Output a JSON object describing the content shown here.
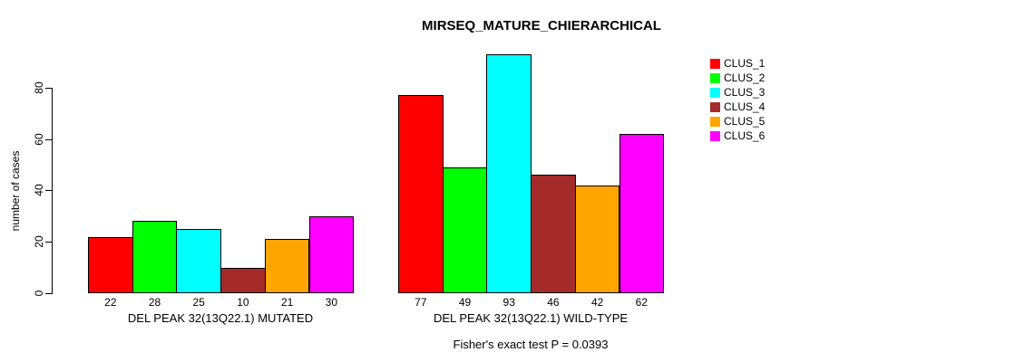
{
  "chart_data": {
    "type": "bar",
    "title": "MIRSEQ_MATURE_CHIERARCHICAL",
    "ylabel": "number of cases",
    "xlabel": "",
    "ylim": [
      0,
      80
    ],
    "yticks": [
      0,
      20,
      40,
      60,
      80
    ],
    "grid": false,
    "legend_position": "right",
    "legend": [
      {
        "label": "CLUS_1",
        "color": "#FF0000"
      },
      {
        "label": "CLUS_2",
        "color": "#00FF00"
      },
      {
        "label": "CLUS_3",
        "color": "#00FFFF"
      },
      {
        "label": "CLUS_4",
        "color": "#A52A2A"
      },
      {
        "label": "CLUS_5",
        "color": "#FFA500"
      },
      {
        "label": "CLUS_6",
        "color": "#FF00FF"
      }
    ],
    "groups": [
      {
        "label": "DEL PEAK 32(13Q22.1) MUTATED",
        "values": [
          22,
          28,
          25,
          10,
          21,
          30
        ]
      },
      {
        "label": "DEL PEAK 32(13Q22.1) WILD-TYPE",
        "values": [
          77,
          49,
          93,
          46,
          42,
          62
        ]
      }
    ],
    "value_labels_shown": true,
    "footer": "Fisher's exact test P = 0.0393"
  }
}
